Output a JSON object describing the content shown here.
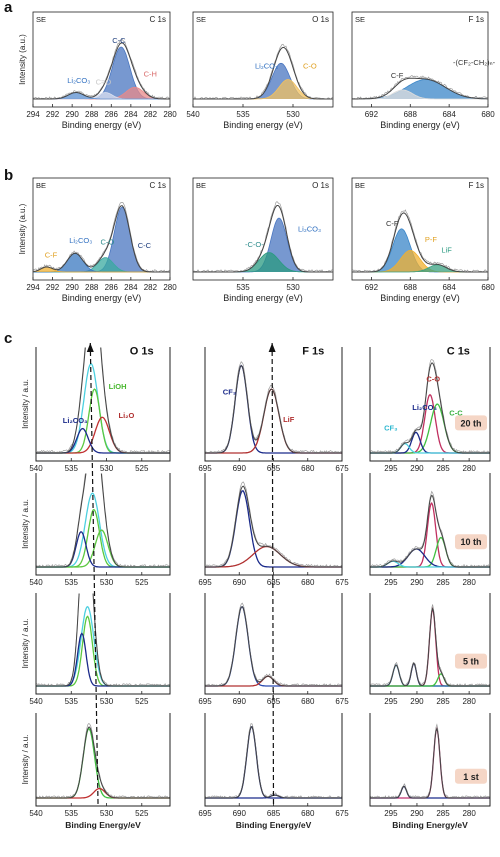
{
  "panel_labels": [
    "a",
    "b",
    "c"
  ],
  "chart_data": [
    {
      "id": "a1",
      "type": "line",
      "corner": "SE",
      "title": "C 1s",
      "xlabel": "Binding energy (eV)",
      "ylabel": "Intensity (a.u.)",
      "xlim": [
        294,
        280
      ],
      "xticks": [
        294,
        292,
        290,
        288,
        286,
        284,
        282,
        280
      ],
      "peaks": [
        {
          "c": 285,
          "w": 0.9,
          "h": 0.8,
          "col": "#4a76c0"
        },
        {
          "c": 283.6,
          "w": 0.9,
          "h": 0.18,
          "col": "#e88a8a"
        },
        {
          "c": 286.6,
          "w": 0.7,
          "h": 0.1,
          "col": "#d9dff0"
        },
        {
          "c": 289.6,
          "w": 0.8,
          "h": 0.1,
          "col": "#5b8fd0"
        }
      ],
      "annotations": [
        {
          "t": "C-C",
          "x": 285.9,
          "y": 0.86,
          "col": "#1a3a7a"
        },
        {
          "t": "C-H",
          "x": 282.7,
          "y": 0.35,
          "col": "#d96a6a"
        },
        {
          "t": "C=O",
          "x": 287.6,
          "y": 0.22,
          "col": "#c9c9c9"
        },
        {
          "t": "Li₂CO₃",
          "x": 290.5,
          "y": 0.25,
          "col": "#2f6fc0"
        }
      ]
    },
    {
      "id": "a2",
      "type": "line",
      "corner": "SE",
      "title": "O 1s",
      "xlabel": "Binding energy (eV)",
      "ylabel": "",
      "xlim": [
        540,
        526
      ],
      "xticks": [
        540,
        535,
        530
      ],
      "peaks": [
        {
          "c": 531.2,
          "w": 0.9,
          "h": 0.55,
          "col": "#4a76c0"
        },
        {
          "c": 530.5,
          "w": 0.9,
          "h": 0.3,
          "col": "#f0c060"
        }
      ],
      "annotations": [
        {
          "t": "Li₂CO₃",
          "x": 533.8,
          "y": 0.47,
          "col": "#2f6fc0"
        },
        {
          "t": "C-O",
          "x": 529,
          "y": 0.47,
          "col": "#e0a020"
        }
      ]
    },
    {
      "id": "a3",
      "type": "line",
      "corner": "SE",
      "title": "F 1s",
      "xlabel": "Binding energy (eV)",
      "ylabel": "",
      "xlim": [
        694,
        680
      ],
      "xticks": [
        692,
        688,
        684,
        680
      ],
      "peaks": [
        {
          "c": 686.4,
          "w": 2.0,
          "h": 0.3,
          "col": "#3a86c8"
        },
        {
          "c": 688.8,
          "w": 1.0,
          "h": 0.14,
          "col": "#dddddd"
        }
      ],
      "annotations": [
        {
          "t": "C-F",
          "x": 690,
          "y": 0.32,
          "col": "#333333"
        },
        {
          "t": "-(CF₂-CH₂)ₙ-",
          "x": 683.6,
          "y": 0.52,
          "col": "#333333"
        }
      ]
    },
    {
      "id": "b1",
      "type": "line",
      "corner": "BE",
      "title": "C 1s",
      "xlabel": "Binding energy (eV)",
      "ylabel": "Intensity (a.u.)",
      "xlim": [
        294,
        280
      ],
      "xticks": [
        294,
        292,
        290,
        288,
        286,
        284,
        282,
        280
      ],
      "peaks": [
        {
          "c": 284.9,
          "w": 0.8,
          "h": 0.9,
          "col": "#4a76c0"
        },
        {
          "c": 286.6,
          "w": 0.8,
          "h": 0.2,
          "col": "#3aa9a0"
        },
        {
          "c": 289.7,
          "w": 0.8,
          "h": 0.26,
          "col": "#3a78c0"
        },
        {
          "c": 292.6,
          "w": 0.6,
          "h": 0.07,
          "col": "#f0b030"
        }
      ],
      "annotations": [
        {
          "t": "C-C",
          "x": 283.3,
          "y": 0.33,
          "col": "#1a3a7a"
        },
        {
          "t": "C-O",
          "x": 287.1,
          "y": 0.38,
          "col": "#2a8a8a"
        },
        {
          "t": "Li₂CO₃",
          "x": 290.3,
          "y": 0.4,
          "col": "#2f6fc0"
        },
        {
          "t": "C-F",
          "x": 292.8,
          "y": 0.2,
          "col": "#e0a020"
        }
      ]
    },
    {
      "id": "b2",
      "type": "line",
      "corner": "BE",
      "title": "O 1s",
      "xlabel": "Binding energy (eV)",
      "ylabel": "",
      "xlim": [
        540,
        526
      ],
      "xticks": [
        535,
        530
      ],
      "peaks": [
        {
          "c": 531.4,
          "w": 0.8,
          "h": 0.75,
          "col": "#4a76c0"
        },
        {
          "c": 532.4,
          "w": 1.0,
          "h": 0.27,
          "col": "#2a9a80"
        }
      ],
      "annotations": [
        {
          "t": "Li₂CO₃",
          "x": 529.5,
          "y": 0.56,
          "col": "#2f6fc0"
        },
        {
          "t": "-C-O-",
          "x": 534.8,
          "y": 0.35,
          "col": "#2a8a8a"
        }
      ]
    },
    {
      "id": "b3",
      "type": "line",
      "corner": "BE",
      "title": "F 1s",
      "xlabel": "Binding energy (eV)",
      "ylabel": "",
      "xlim": [
        694,
        680
      ],
      "xticks": [
        692,
        688,
        684,
        680
      ],
      "peaks": [
        {
          "c": 688.9,
          "w": 0.9,
          "h": 0.6,
          "col": "#3a86c8"
        },
        {
          "c": 688.0,
          "w": 1.0,
          "h": 0.3,
          "col": "#f0b030"
        },
        {
          "c": 685.2,
          "w": 0.9,
          "h": 0.1,
          "col": "#3aa080"
        }
      ],
      "annotations": [
        {
          "t": "C-F",
          "x": 690.5,
          "y": 0.64,
          "col": "#333333"
        },
        {
          "t": "P-F",
          "x": 686.5,
          "y": 0.42,
          "col": "#e0a020"
        },
        {
          "t": "LiF",
          "x": 684.8,
          "y": 0.27,
          "col": "#2a9a80"
        }
      ]
    },
    {
      "id": "c1",
      "type": "line",
      "title": "O 1s",
      "ylabel": "Intensity / a.u.",
      "xlim": [
        540,
        521
      ],
      "xticks": [
        540,
        535,
        530,
        525
      ],
      "peaks": [
        {
          "c": 532.2,
          "w": 1.0,
          "h": 0.95,
          "col": "#4dd0e0"
        },
        {
          "c": 531.7,
          "w": 0.8,
          "h": 0.68,
          "col": "#5cc840"
        },
        {
          "c": 530.6,
          "w": 1.0,
          "h": 0.38,
          "col": "#c03030"
        },
        {
          "c": 533.4,
          "w": 0.8,
          "h": 0.26,
          "col": "#1a2a8a"
        }
      ],
      "annotations": [
        {
          "t": "O 1s",
          "x": 526.7,
          "y": 1.05,
          "col": "#111111"
        },
        {
          "t": "LiOH",
          "x": 529.7,
          "y": 0.68,
          "col": "#4ab830"
        },
        {
          "t": "Li₂O",
          "x": 528.3,
          "y": 0.37,
          "col": "#b03030"
        },
        {
          "t": "Li₂CO₃",
          "x": 536.2,
          "y": 0.32,
          "col": "#1a2a8a"
        }
      ]
    },
    {
      "id": "c2",
      "type": "line",
      "title": "F 1s",
      "ylabel": "",
      "xlim": [
        695,
        675
      ],
      "xticks": [
        695,
        690,
        685,
        680,
        675
      ],
      "peaks": [
        {
          "c": 689.7,
          "w": 0.9,
          "h": 0.93,
          "col": "#1a2a8a"
        },
        {
          "c": 685.3,
          "w": 1.1,
          "h": 0.68,
          "col": "#b03030"
        }
      ],
      "annotations": [
        {
          "t": "F 1s",
          "x": 680.8,
          "y": 1.05,
          "col": "#111111"
        },
        {
          "t": "CF₃",
          "x": 692.4,
          "y": 0.62,
          "col": "#1a2a8a"
        },
        {
          "t": "LiF",
          "x": 683.6,
          "y": 0.33,
          "col": "#b03030"
        }
      ]
    },
    {
      "id": "c3",
      "type": "line",
      "title": "C 1s",
      "ylabel": "",
      "xlim": [
        299,
        276
      ],
      "xticks": [
        295,
        290,
        285,
        280
      ],
      "level_label": "20 th",
      "peaks": [
        {
          "c": 287.5,
          "w": 1.0,
          "h": 0.62,
          "col": "#c03060"
        },
        {
          "c": 286.1,
          "w": 1.3,
          "h": 0.52,
          "col": "#40c040"
        },
        {
          "c": 290.2,
          "w": 0.8,
          "h": 0.22,
          "col": "#1a2a8a"
        },
        {
          "c": 292.3,
          "w": 0.8,
          "h": 0.1,
          "col": "#4dd0e0"
        }
      ],
      "annotations": [
        {
          "t": "C 1s",
          "x": 284.3,
          "y": 1.05,
          "col": "#111111"
        },
        {
          "t": "C-O",
          "x": 288.2,
          "y": 0.76,
          "col": "#b03030"
        },
        {
          "t": "Li₂CO₃",
          "x": 290.9,
          "y": 0.46,
          "col": "#1a2a8a"
        },
        {
          "t": "C-C",
          "x": 283.8,
          "y": 0.4,
          "col": "#3ab040"
        },
        {
          "t": "CF₃",
          "x": 296.3,
          "y": 0.24,
          "col": "#30b8d0"
        }
      ]
    },
    {
      "id": "c4",
      "type": "line",
      "ylabel": "Intensity / a.u.",
      "xlim": [
        540,
        521
      ],
      "xticks": [
        540,
        535,
        530,
        525
      ],
      "peaks": [
        {
          "c": 532.0,
          "w": 1.0,
          "h": 0.9,
          "col": "#4dd0e0"
        },
        {
          "c": 531.8,
          "w": 0.8,
          "h": 0.7,
          "col": "#5cc840"
        },
        {
          "c": 530.7,
          "w": 0.9,
          "h": 0.45,
          "col": "#5cc840"
        },
        {
          "c": 533.6,
          "w": 0.7,
          "h": 0.43,
          "col": "#1a2a8a"
        }
      ],
      "annotations": []
    },
    {
      "id": "c5",
      "type": "line",
      "ylabel": "",
      "xlim": [
        695,
        675
      ],
      "xticks": [
        695,
        690,
        685,
        680,
        675
      ],
      "peaks": [
        {
          "c": 689.5,
          "w": 1.0,
          "h": 0.93,
          "col": "#1a2a8a"
        },
        {
          "c": 686.0,
          "w": 2.0,
          "h": 0.25,
          "col": "#b03030"
        }
      ],
      "annotations": []
    },
    {
      "id": "c6",
      "type": "line",
      "ylabel": "",
      "xlim": [
        299,
        276
      ],
      "xticks": [
        295,
        290,
        285,
        280
      ],
      "level_label": "10 th",
      "peaks": [
        {
          "c": 287.2,
          "w": 0.8,
          "h": 0.78,
          "col": "#c03060"
        },
        {
          "c": 285.4,
          "w": 0.9,
          "h": 0.36,
          "col": "#40c040"
        },
        {
          "c": 290.1,
          "w": 1.6,
          "h": 0.22,
          "col": "#1a2a8a"
        },
        {
          "c": 294.6,
          "w": 1.0,
          "h": 0.07,
          "col": "#4dd0e0"
        }
      ],
      "annotations": []
    },
    {
      "id": "c7",
      "type": "line",
      "ylabel": "Intensity / a.u.",
      "xlim": [
        540,
        521
      ],
      "xticks": [
        540,
        535,
        530,
        525
      ],
      "peaks": [
        {
          "c": 532.7,
          "w": 0.9,
          "h": 0.98,
          "col": "#4dd0e0"
        },
        {
          "c": 532.7,
          "w": 0.7,
          "h": 0.86,
          "col": "#5cc840"
        },
        {
          "c": 533.5,
          "w": 0.6,
          "h": 0.65,
          "col": "#1a2a8a"
        }
      ],
      "annotations": []
    },
    {
      "id": "c8",
      "type": "line",
      "ylabel": "",
      "xlim": [
        695,
        675
      ],
      "xticks": [
        695,
        690,
        685,
        680,
        675
      ],
      "peaks": [
        {
          "c": 689.6,
          "w": 0.9,
          "h": 0.98,
          "col": "#2a4ab0"
        },
        {
          "c": 685.8,
          "w": 0.8,
          "h": 0.12,
          "col": "#b03030"
        }
      ],
      "annotations": []
    },
    {
      "id": "c9",
      "type": "line",
      "ylabel": "",
      "xlim": [
        299,
        276
      ],
      "xticks": [
        295,
        290,
        285,
        280
      ],
      "level_label": "5 th",
      "peaks": [
        {
          "c": 287.0,
          "w": 0.6,
          "h": 0.95,
          "col": "#c03060"
        },
        {
          "c": 290.6,
          "w": 0.5,
          "h": 0.28,
          "col": "#1a2a8a"
        },
        {
          "c": 294.0,
          "w": 0.6,
          "h": 0.26,
          "col": "#2a7ab0"
        },
        {
          "c": 285.4,
          "w": 0.6,
          "h": 0.15,
          "col": "#40c040"
        }
      ],
      "annotations": []
    },
    {
      "id": "c10",
      "type": "line",
      "ylabel": "Intensity / a.u.",
      "xlabel": "Binding Energy/eV",
      "xlim": [
        540,
        521
      ],
      "xticks": [
        540,
        535,
        530,
        525
      ],
      "peaks": [
        {
          "c": 532.5,
          "w": 0.8,
          "h": 0.95,
          "col": "#40c040"
        },
        {
          "c": 531.0,
          "w": 0.8,
          "h": 0.13,
          "col": "#c03030"
        }
      ],
      "annotations": []
    },
    {
      "id": "c11",
      "type": "line",
      "ylabel": "",
      "xlabel": "Binding Energy/eV",
      "xlim": [
        695,
        675
      ],
      "xticks": [
        695,
        690,
        685,
        680,
        675
      ],
      "peaks": [
        {
          "c": 688.2,
          "w": 0.7,
          "h": 0.98,
          "col": "#1a2a8a"
        },
        {
          "c": 684.8,
          "w": 0.6,
          "h": 0.04,
          "col": "#1a2a8a"
        }
      ],
      "annotations": []
    },
    {
      "id": "c12",
      "type": "line",
      "ylabel": "",
      "xlabel": "Binding Energy/eV",
      "xlim": [
        299,
        276
      ],
      "xticks": [
        295,
        290,
        285,
        280
      ],
      "level_label": "1 st",
      "peaks": [
        {
          "c": 286.2,
          "w": 0.6,
          "h": 0.95,
          "col": "#c03070"
        },
        {
          "c": 292.5,
          "w": 0.5,
          "h": 0.16,
          "col": "#1a2a8a"
        }
      ],
      "annotations": []
    }
  ],
  "colors": {
    "axis": "#222222",
    "envelope": "#444444",
    "raw": "#9a9a9a",
    "badge": "#f5d6c6",
    "dash": "#111111"
  }
}
